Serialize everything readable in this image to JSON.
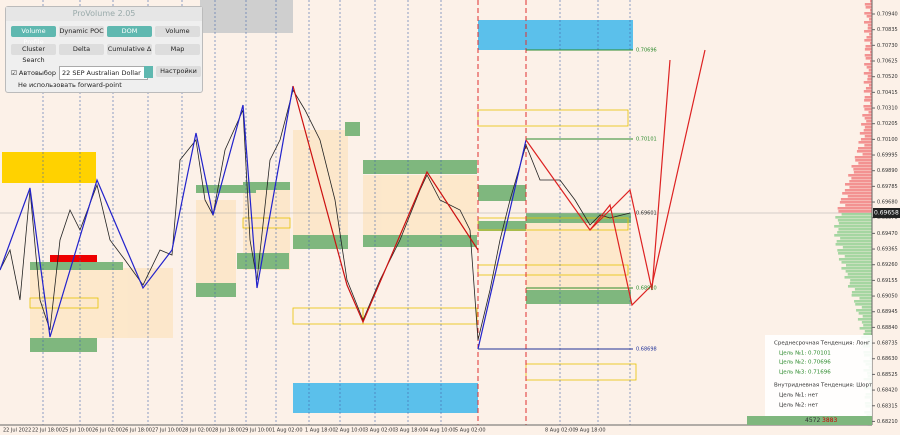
{
  "panel": {
    "title": "ProVolume 2.05",
    "buttons": [
      "Volume Profile",
      "Dynamic POC",
      "DOM",
      "Volume",
      "Cluster Search",
      "Delta",
      "Cumulative Δ",
      "Map"
    ],
    "checkbox": "Автовыбор",
    "symbol": "22 SEP Australian Dollar",
    "settings": "Настройки",
    "forward_point": "Не использовать forward-point"
  },
  "price_axis": {
    "labels": [
      "0.70940",
      "0.70835",
      "0.70730",
      "0.70625",
      "0.70520",
      "0.70415",
      "0.70310",
      "0.70205",
      "0.70100",
      "0.69995",
      "0.69890",
      "0.69785",
      "0.69680",
      "0.69575",
      "0.69470",
      "0.69365",
      "0.69260",
      "0.69155",
      "0.69050",
      "0.68945",
      "0.68840",
      "0.68735",
      "0.68630",
      "0.68525",
      "0.68420",
      "0.68315",
      "0.68210"
    ],
    "current": "0.69658"
  },
  "time_axis": {
    "labels": [
      "22 Jul 2022",
      "22 Jul 18:00",
      "25 Jul 10:00",
      "26 Jul 02:00",
      "26 Jul 18:00",
      "27 Jul 10:00",
      "28 Jul 02:00",
      "28 Jul 18:00",
      "29 Jul 10:00",
      "1 Aug 02:00",
      "1 Aug 18:00",
      "2 Aug 10:00",
      "3 Aug 02:00",
      "3 Aug 18:00",
      "4 Aug 10:00",
      "5 Aug 02:00",
      "8 Aug 02:00",
      "9 Aug 18:00"
    ]
  },
  "levels": [
    "0.70696",
    "0.70101",
    "0.69601",
    "0.68910",
    "0.68698"
  ],
  "info": {
    "lines": [
      "Среднесрочная Тенденция: Лонг",
      "Цель №1: 0.70101",
      "Цель №2: 0.70696",
      "Цель №3: 0.71696",
      "Внутридневная Тенденция: Шорт",
      "Цель №1: нет",
      "Цель №2: нет"
    ]
  },
  "volume": {
    "buy": "4572",
    "sell": "3883"
  }
}
